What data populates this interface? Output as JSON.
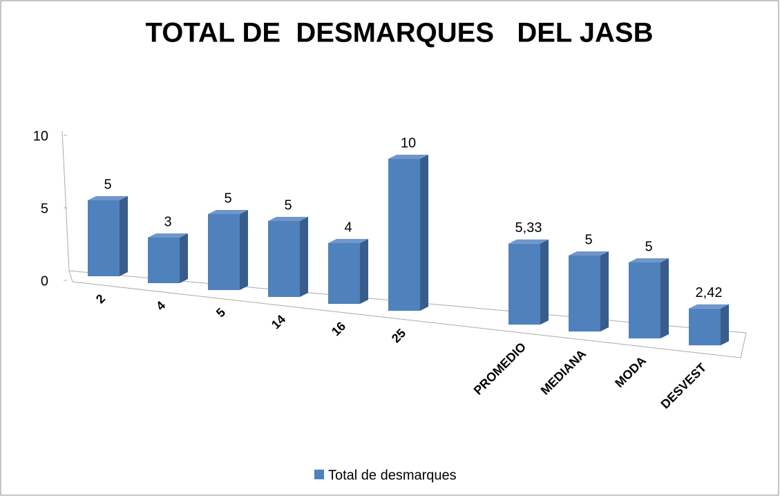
{
  "chart_data": {
    "type": "bar3d",
    "title": "TOTAL DE  DESMARQUES   DEL JASB",
    "categories": [
      "2",
      "4",
      "5",
      "14",
      "16",
      "25",
      null,
      "PROMEDIO",
      "MEDIANA",
      "MODA",
      "DESVEST"
    ],
    "series": [
      {
        "name": "Total de desmarques",
        "color": "#4f81bd",
        "values": [
          5,
          3,
          5,
          5,
          4,
          10,
          null,
          5.33,
          5,
          5,
          2.42
        ],
        "value_labels": [
          "5",
          "3",
          "5",
          "5",
          "4",
          "10",
          null,
          "5,33",
          "5",
          "5",
          "2,42"
        ]
      }
    ],
    "ylim": [
      0,
      10
    ],
    "yticks": [
      0,
      5,
      10
    ],
    "legend": "bottom"
  }
}
